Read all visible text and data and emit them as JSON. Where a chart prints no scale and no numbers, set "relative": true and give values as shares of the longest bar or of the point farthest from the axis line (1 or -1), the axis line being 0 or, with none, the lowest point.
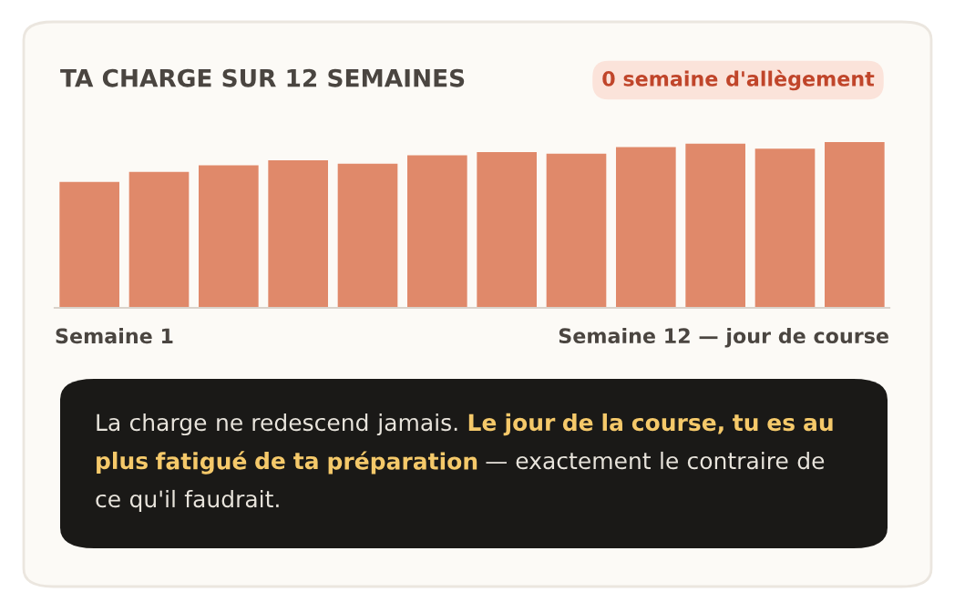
{
  "chart_data": {
    "type": "bar",
    "title": "TA CHARGE SUR 12 SEMAINES",
    "subtitle": "0 semaine d'allègement",
    "categories": [
      null,
      null,
      null,
      null,
      null,
      null,
      null,
      null,
      null,
      null,
      null,
      null
    ],
    "values": [
      0.76,
      0.82,
      0.86,
      0.89,
      0.87,
      0.92,
      0.94,
      0.93,
      0.97,
      0.99,
      0.96,
      1
    ],
    "color": "#e0896a",
    "relative": true,
    "annotations": [
      "Semaine 1",
      "Semaine 12 — jour de course",
      "La charge ne redescend jamais.",
      "Le jour de la course, tu es au plus fatigué de ta préparation",
      "— exactement le contraire de ce qu'il faudrait."
    ]
  }
}
